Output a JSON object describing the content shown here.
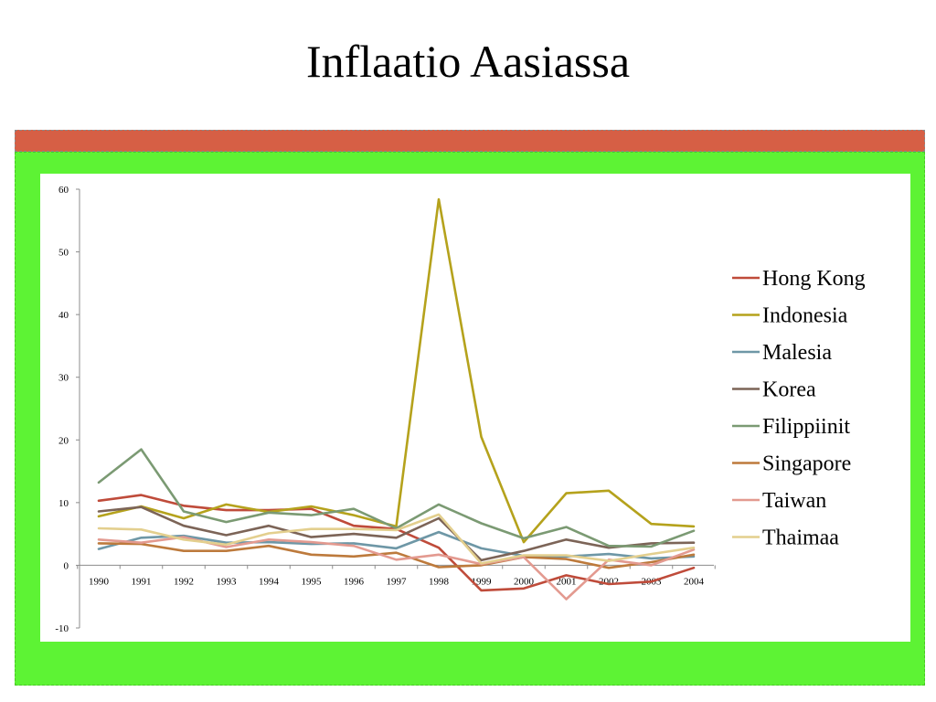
{
  "slide": {
    "title": "Inflaatio Aasiassa"
  },
  "colors": {
    "band": "#d65f45",
    "frame": "#5df334",
    "panel": "#ffffff"
  },
  "chart_data": {
    "type": "line",
    "title": "",
    "xlabel": "",
    "ylabel": "",
    "categories": [
      "1990",
      "1991",
      "1992",
      "1993",
      "1994",
      "1995",
      "1996",
      "1997",
      "1998",
      "1999",
      "2000",
      "2001",
      "2002",
      "2003",
      "2004"
    ],
    "ylim": [
      -10,
      60
    ],
    "yticks": [
      -10,
      0,
      10,
      20,
      30,
      40,
      50,
      60
    ],
    "grid": false,
    "legend": "right",
    "series": [
      {
        "name": "Hong Kong",
        "color": "#bf4b3a",
        "values": [
          10.3,
          11.2,
          9.5,
          8.8,
          8.8,
          9.0,
          6.3,
          5.8,
          2.8,
          -4.0,
          -3.7,
          -1.6,
          -3.0,
          -2.6,
          -0.4
        ]
      },
      {
        "name": "Indonesia",
        "color": "#b5a21c",
        "values": [
          7.8,
          9.4,
          7.5,
          9.7,
          8.5,
          9.4,
          8.0,
          6.2,
          58.4,
          20.5,
          3.7,
          11.5,
          11.9,
          6.6,
          6.2
        ]
      },
      {
        "name": "Malesia",
        "color": "#6e97a6",
        "values": [
          2.6,
          4.4,
          4.7,
          3.6,
          3.7,
          3.4,
          3.5,
          2.7,
          5.3,
          2.7,
          1.5,
          1.4,
          1.8,
          1.1,
          1.4
        ]
      },
      {
        "name": "Korea",
        "color": "#7c6457",
        "values": [
          8.6,
          9.3,
          6.3,
          4.8,
          6.3,
          4.5,
          5.0,
          4.4,
          7.5,
          0.8,
          2.3,
          4.1,
          2.8,
          3.5,
          3.6
        ]
      },
      {
        "name": "Filippiinit",
        "color": "#7b9a73",
        "values": [
          13.2,
          18.5,
          8.6,
          6.9,
          8.4,
          8.0,
          9.0,
          5.9,
          9.7,
          6.7,
          4.3,
          6.1,
          3.1,
          3.0,
          5.5
        ]
      },
      {
        "name": "Singapore",
        "color": "#bd7a3c",
        "values": [
          3.5,
          3.4,
          2.3,
          2.3,
          3.1,
          1.7,
          1.4,
          2.0,
          -0.3,
          0.0,
          1.3,
          1.0,
          -0.4,
          0.5,
          1.7
        ]
      },
      {
        "name": "Taiwan",
        "color": "#e39a90",
        "values": [
          4.1,
          3.6,
          4.5,
          2.9,
          4.1,
          3.7,
          3.1,
          0.9,
          1.7,
          0.2,
          1.3,
          -5.4,
          0.9,
          0.0,
          2.5
        ]
      },
      {
        "name": "Thaimaa",
        "color": "#e3cf8e",
        "values": [
          5.9,
          5.7,
          4.1,
          3.3,
          5.1,
          5.8,
          5.8,
          5.6,
          8.1,
          0.3,
          1.6,
          1.6,
          0.7,
          1.8,
          2.8
        ]
      }
    ]
  }
}
